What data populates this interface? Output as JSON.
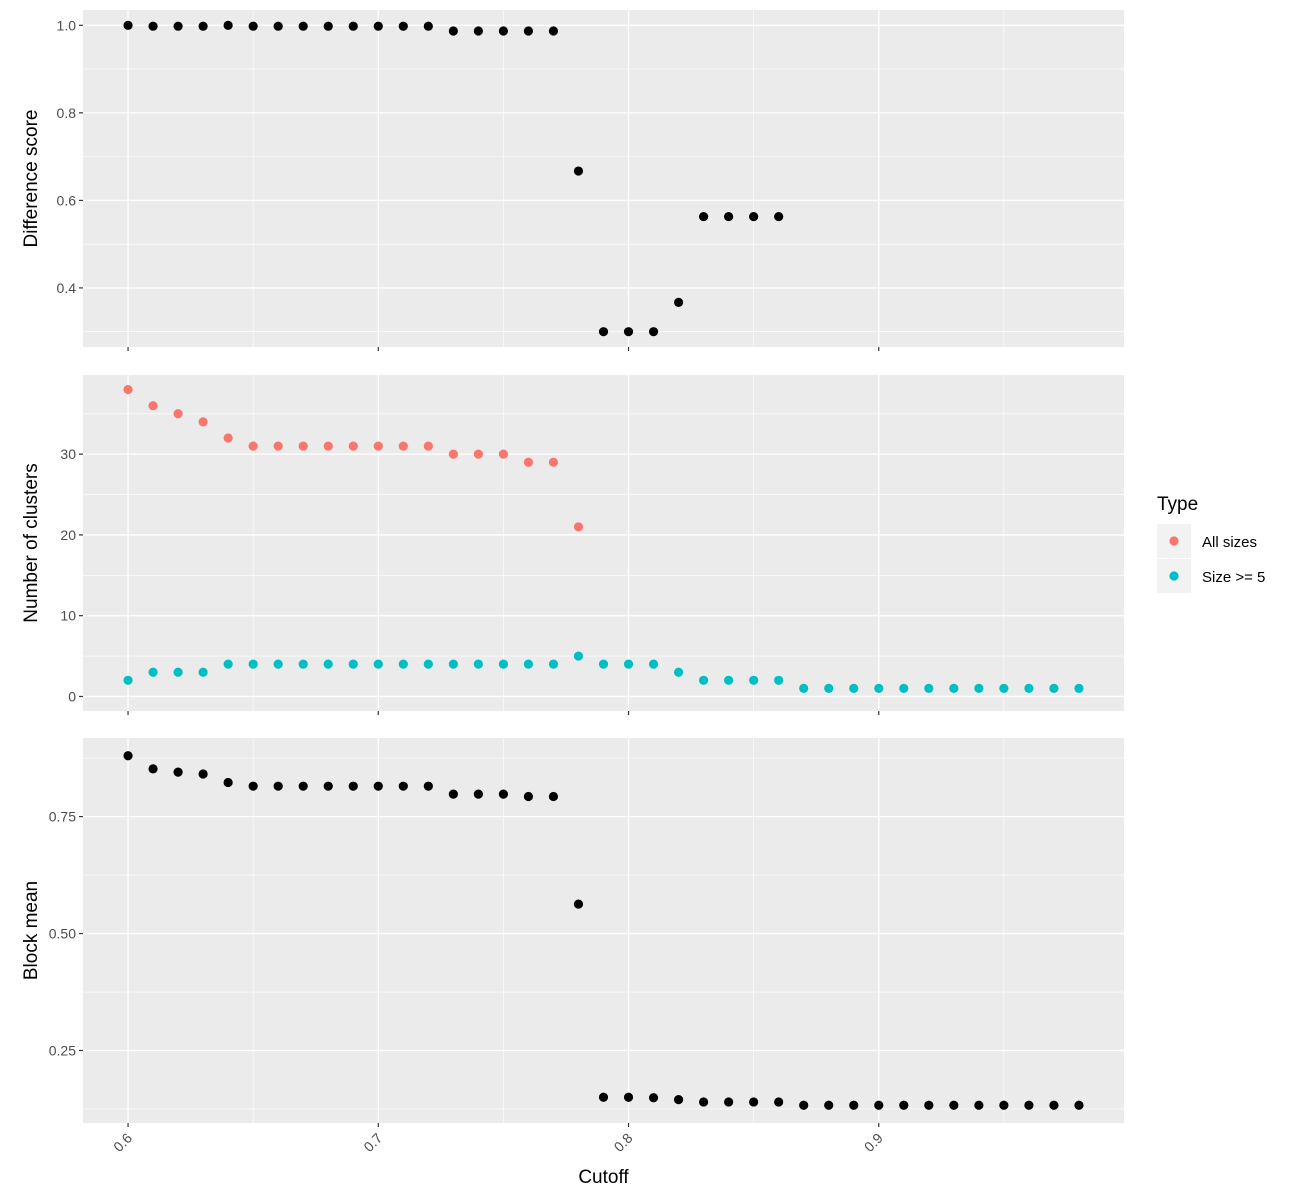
{
  "colors": {
    "panel_background": "#EBEBEB",
    "grid_major": "#FFFFFF",
    "black_points": "#000000",
    "all_sizes": "#F8766D",
    "size_ge_5": "#00BFC4"
  },
  "chart_data": {
    "type": "scatter",
    "layout": "three vertically stacked panels sharing x axis",
    "xlabel": "Cutoff",
    "xlim": [
      0.582,
      0.998
    ],
    "x_ticks": [
      0.6,
      0.7,
      0.8,
      0.9
    ],
    "x_tick_labels": [
      "0.6",
      "0.7",
      "0.8",
      "0.9"
    ],
    "grid": true,
    "legend": {
      "title": "Type",
      "position": "right",
      "entries": [
        "All sizes",
        "Size >= 5"
      ]
    },
    "panels": [
      {
        "id": "difference",
        "ylabel": "Difference score",
        "ylim": [
          0.265,
          1.035
        ],
        "y_ticks": [
          0.4,
          0.6,
          0.8,
          1.0
        ],
        "y_tick_labels": [
          "0.4",
          "0.6",
          "0.8",
          "1.0"
        ],
        "series": [
          {
            "color": "#000000",
            "x": [
              0.6,
              0.61,
              0.62,
              0.63,
              0.64,
              0.65,
              0.66,
              0.67,
              0.68,
              0.69,
              0.7,
              0.71,
              0.72,
              0.73,
              0.74,
              0.75,
              0.76,
              0.77,
              0.78,
              0.79,
              0.8,
              0.81,
              0.82,
              0.83,
              0.84,
              0.85,
              0.86
            ],
            "y": [
              1.0,
              0.998,
              0.998,
              0.998,
              1.0,
              0.998,
              0.998,
              0.998,
              0.998,
              0.998,
              0.998,
              0.998,
              0.998,
              0.987,
              0.987,
              0.987,
              0.987,
              0.987,
              0.667,
              0.3,
              0.3,
              0.3,
              0.367,
              0.563,
              0.563,
              0.563,
              0.563
            ]
          }
        ]
      },
      {
        "id": "clusters",
        "ylabel": "Number of clusters",
        "ylim": [
          -1.8,
          39.8
        ],
        "y_ticks": [
          0,
          10,
          20,
          30
        ],
        "y_tick_labels": [
          "0",
          "10",
          "20",
          "30"
        ],
        "series": [
          {
            "name": "All sizes",
            "color": "#F8766D",
            "x": [
              0.6,
              0.61,
              0.62,
              0.63,
              0.64,
              0.65,
              0.66,
              0.67,
              0.68,
              0.69,
              0.7,
              0.71,
              0.72,
              0.73,
              0.74,
              0.75,
              0.76,
              0.77,
              0.78
            ],
            "y": [
              38,
              36,
              35,
              34,
              32,
              31,
              31,
              31,
              31,
              31,
              31,
              31,
              31,
              30,
              30,
              30,
              29,
              29,
              21
            ]
          },
          {
            "name": "Size >= 5",
            "color": "#00BFC4",
            "x": [
              0.6,
              0.61,
              0.62,
              0.63,
              0.64,
              0.65,
              0.66,
              0.67,
              0.68,
              0.69,
              0.7,
              0.71,
              0.72,
              0.73,
              0.74,
              0.75,
              0.76,
              0.77,
              0.78,
              0.79,
              0.8,
              0.81,
              0.82,
              0.83,
              0.84,
              0.85,
              0.86,
              0.87,
              0.88,
              0.89,
              0.9,
              0.91,
              0.92,
              0.93,
              0.94,
              0.95,
              0.96,
              0.97,
              0.98
            ],
            "y": [
              2,
              3,
              3,
              3,
              4,
              4,
              4,
              4,
              4,
              4,
              4,
              4,
              4,
              4,
              4,
              4,
              4,
              4,
              5,
              4,
              4,
              4,
              3,
              2,
              2,
              2,
              2,
              1,
              1,
              1,
              1,
              1,
              1,
              1,
              1,
              1,
              1,
              1,
              1
            ]
          }
        ]
      },
      {
        "id": "blockmean",
        "ylabel": "Block mean",
        "ylim": [
          0.095,
          0.918
        ],
        "y_ticks": [
          0.25,
          0.5,
          0.75
        ],
        "y_tick_labels": [
          "0.25",
          "0.50",
          "0.75"
        ],
        "series": [
          {
            "color": "#000000",
            "x": [
              0.6,
              0.61,
              0.62,
              0.63,
              0.64,
              0.65,
              0.66,
              0.67,
              0.68,
              0.69,
              0.7,
              0.71,
              0.72,
              0.73,
              0.74,
              0.75,
              0.76,
              0.77,
              0.78,
              0.79,
              0.8,
              0.81,
              0.82,
              0.83,
              0.84,
              0.85,
              0.86,
              0.87,
              0.88,
              0.89,
              0.9,
              0.91,
              0.92,
              0.93,
              0.94,
              0.95,
              0.96,
              0.97,
              0.98
            ],
            "y": [
              0.88,
              0.852,
              0.845,
              0.841,
              0.823,
              0.815,
              0.815,
              0.815,
              0.815,
              0.815,
              0.815,
              0.815,
              0.815,
              0.798,
              0.798,
              0.798,
              0.793,
              0.793,
              0.563,
              0.15,
              0.15,
              0.149,
              0.145,
              0.14,
              0.14,
              0.14,
              0.14,
              0.133,
              0.133,
              0.133,
              0.133,
              0.133,
              0.133,
              0.133,
              0.133,
              0.133,
              0.133,
              0.133,
              0.133
            ]
          }
        ]
      }
    ]
  }
}
